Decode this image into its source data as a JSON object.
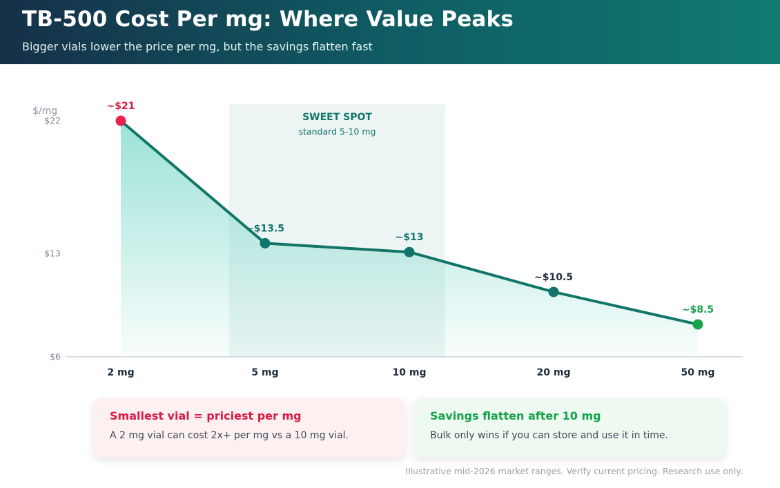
{
  "header": {
    "title": "TB-500 Cost Per mg: Where Value Peaks",
    "subtitle": "Bigger vials lower the price per mg, but the savings flatten fast"
  },
  "chart_data": {
    "type": "line",
    "categories": [
      "2 mg",
      "5 mg",
      "10 mg",
      "20 mg",
      "50 mg"
    ],
    "values": [
      22,
      13.7,
      13.1,
      10.4,
      8.2
    ],
    "data_labels": [
      "~$21",
      "~$13.5",
      "~$13",
      "~$10.5",
      "~$8.5"
    ],
    "point_colors": [
      "#e8214e",
      "#117568",
      "#117568",
      "#117568",
      "#16a34a"
    ],
    "label_colors": [
      "#d81b47",
      "#117568",
      "#117568",
      "#1f2d3d",
      "#16a34a"
    ],
    "ylabel": "$/mg",
    "y_ticks": [
      {
        "value": 22,
        "label": "$22"
      },
      {
        "value": 13,
        "label": "$13"
      },
      {
        "value": 6,
        "label": "$6"
      }
    ],
    "ylim": [
      6,
      22
    ],
    "line_color": "#117568",
    "fill_color": "#5fd0be",
    "highlight": {
      "from": "5 mg",
      "to": "10 mg",
      "title": "SWEET SPOT",
      "subtitle": "standard 5-10 mg",
      "color": "#117568"
    },
    "grid": false
  },
  "cards": {
    "left": {
      "title": "Smallest vial = priciest per mg",
      "body": "A 2 mg vial can cost 2x+ per mg vs a 10 mg vial."
    },
    "right": {
      "title": "Savings flatten after 10 mg",
      "body": "Bulk only wins if you can store and use it in time."
    }
  },
  "footnote": "Illustrative mid-2026 market ranges. Verify current pricing. Research use only."
}
